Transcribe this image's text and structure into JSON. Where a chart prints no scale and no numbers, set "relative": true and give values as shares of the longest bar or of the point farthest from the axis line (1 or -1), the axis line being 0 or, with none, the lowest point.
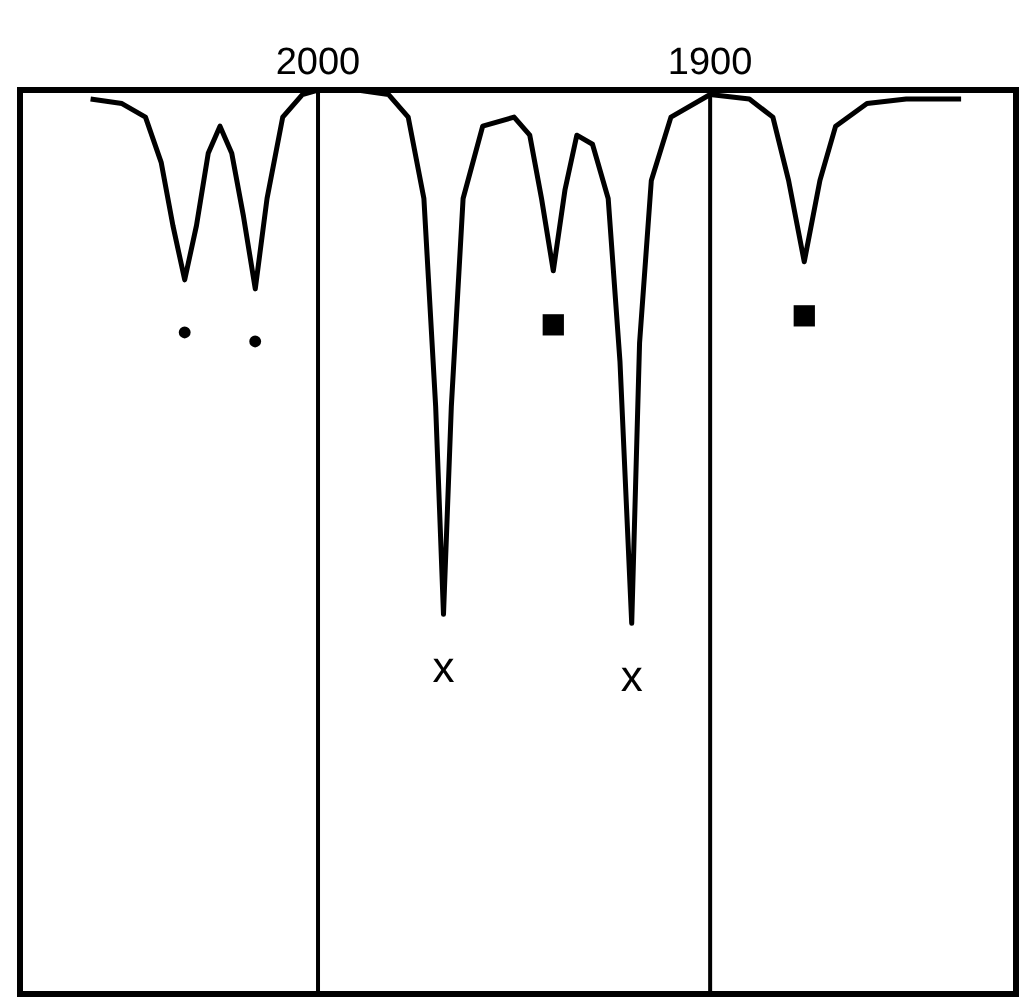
{
  "chart_data": {
    "type": "line",
    "relative": true,
    "x": [
      2058,
      2050,
      2044,
      2040,
      2037,
      2034,
      2031,
      2028,
      2025,
      2022,
      2019,
      2016,
      2013,
      2009,
      2004,
      2000,
      1990,
      1982,
      1977,
      1973,
      1970,
      1968,
      1966,
      1963,
      1958,
      1950,
      1946,
      1943,
      1940,
      1937,
      1934,
      1930,
      1926,
      1923,
      1920,
      1918,
      1915,
      1910,
      1900,
      1890,
      1884,
      1880,
      1876,
      1872,
      1868,
      1860,
      1850,
      1836
    ],
    "series": [
      {
        "color": "#000000",
        "values": [
          0.99,
          0.985,
          0.97,
          0.92,
          0.85,
          0.79,
          0.85,
          0.93,
          0.96,
          0.93,
          0.86,
          0.78,
          0.88,
          0.97,
          0.995,
          1.0,
          1.0,
          0.995,
          0.97,
          0.88,
          0.65,
          0.42,
          0.65,
          0.88,
          0.96,
          0.97,
          0.95,
          0.88,
          0.8,
          0.89,
          0.95,
          0.94,
          0.88,
          0.7,
          0.41,
          0.72,
          0.9,
          0.97,
          0.995,
          0.99,
          0.97,
          0.9,
          0.81,
          0.9,
          0.96,
          0.985,
          0.99,
          0.99
        ]
      }
    ],
    "xlim": [
      2076,
      1822
    ],
    "xticks": [
      2000,
      1900
    ],
    "grid": "x",
    "marker": "none",
    "line_style": "solid",
    "annotations": [
      {
        "text": "•",
        "x": 2034,
        "y": 0.79
      },
      {
        "text": "•",
        "x": 2016,
        "y": 0.78
      },
      {
        "text": "■",
        "x": 1940,
        "y": 0.8
      },
      {
        "text": "■",
        "x": 1876,
        "y": 0.81
      },
      {
        "text": "x",
        "x": 1968,
        "y": 0.42
      },
      {
        "text": "x",
        "x": 1920,
        "y": 0.41
      }
    ]
  }
}
